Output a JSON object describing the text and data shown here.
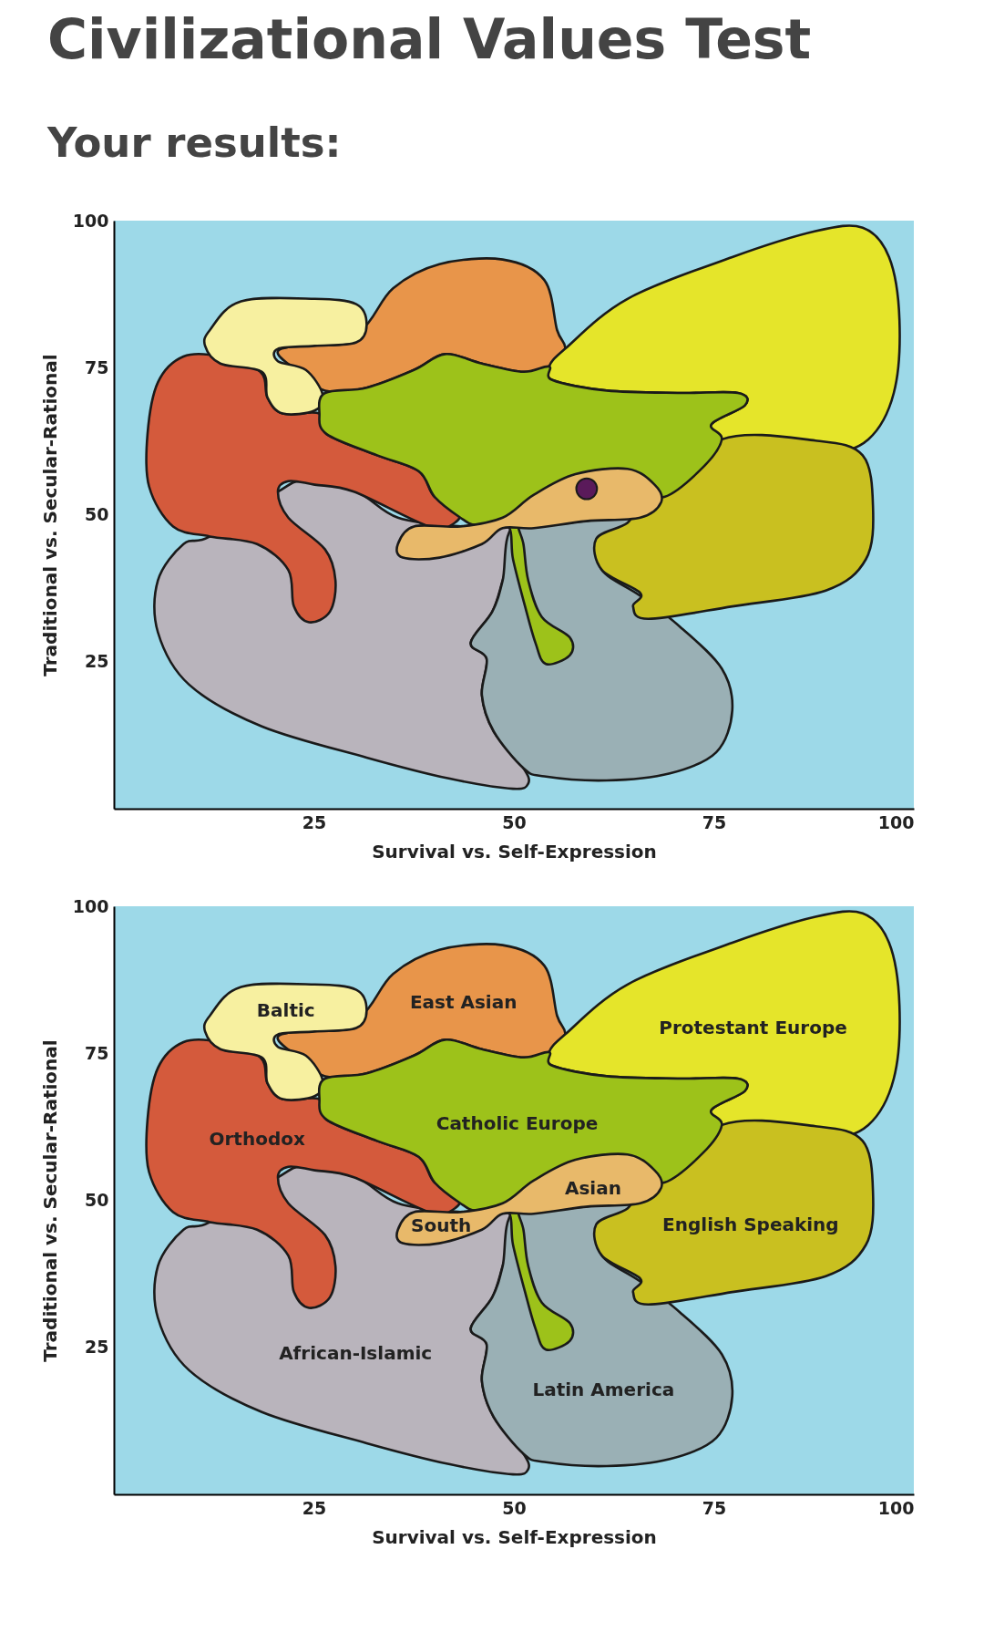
{
  "chart_data": [
    {
      "type": "scatter",
      "title": "Civilizational Values Test",
      "subtitle": "Your results:",
      "xlabel": "Survival vs. Self-Expression",
      "ylabel": "Traditional vs. Secular-Rational",
      "xlim": [
        0,
        100
      ],
      "ylim": [
        0,
        100
      ],
      "xticks": [
        25,
        50,
        75,
        100
      ],
      "yticks": [
        25,
        50,
        75,
        100
      ],
      "series": [
        {
          "color": "#5a1a5a",
          "marker": "circle",
          "x": [
            59.1
          ],
          "values": [
            54.4
          ]
        }
      ]
    },
    {
      "type": "scatter",
      "xlabel": "Survival vs. Self-Expression",
      "ylabel": "Traditional vs. Secular-Rational",
      "xlim": [
        0,
        100
      ],
      "ylim": [
        0,
        100
      ],
      "xticks": [
        25,
        50,
        75,
        100
      ],
      "yticks": [
        25,
        50,
        75,
        100
      ],
      "annotations": [
        "Baltic",
        "East Asian",
        "Protestant Europe",
        "Catholic Europe",
        "Orthodox",
        "Asian",
        "South",
        "English Speaking",
        "African-Islamic",
        "Latin America"
      ]
    }
  ]
}
